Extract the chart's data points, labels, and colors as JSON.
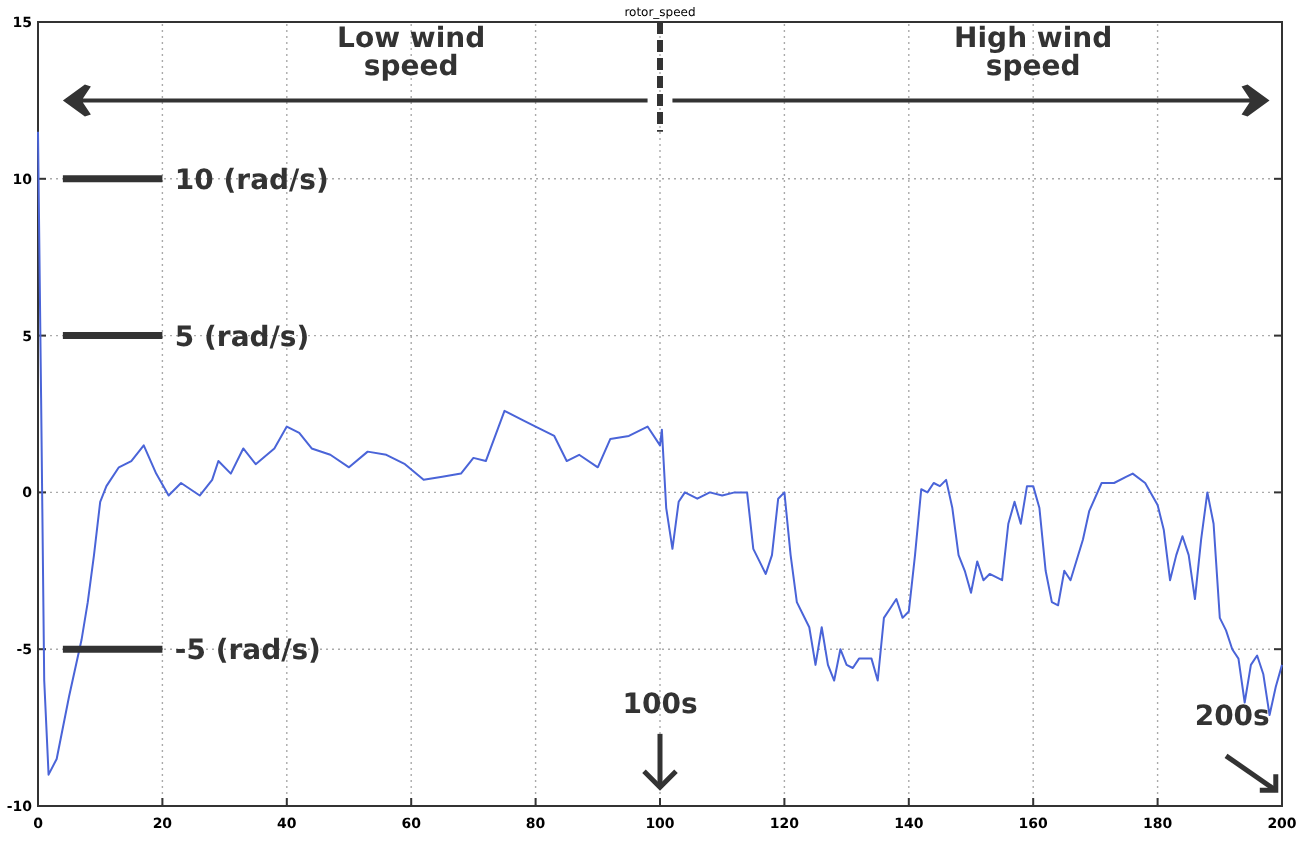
{
  "chart_data": {
    "type": "line",
    "title": "rotor_speed",
    "x": [
      0,
      0.5,
      1,
      1.7,
      3,
      5,
      7,
      8,
      9,
      10,
      11,
      13,
      15,
      17,
      19,
      21,
      23,
      26,
      28,
      29,
      31,
      33,
      35,
      38,
      40,
      42,
      44,
      47,
      50,
      53,
      56,
      59,
      62,
      65,
      68,
      70,
      72,
      75,
      78,
      80,
      83,
      85,
      87,
      90,
      92,
      95,
      98,
      100,
      100.3,
      101,
      102,
      103,
      104,
      106,
      108,
      110,
      112,
      114,
      115,
      116,
      117,
      118,
      119,
      120,
      121,
      122,
      123,
      124,
      125,
      126,
      127,
      128,
      129,
      130,
      131,
      132,
      134,
      135,
      136,
      137,
      138,
      139,
      140,
      141,
      142,
      143,
      144,
      145,
      146,
      147,
      148,
      149,
      150,
      151,
      152,
      153,
      155,
      156,
      157,
      158,
      159,
      160,
      161,
      162,
      163,
      164,
      165,
      166,
      168,
      169,
      171,
      173,
      175,
      176,
      178,
      180,
      181,
      182,
      183,
      184,
      185,
      186,
      187,
      188,
      189,
      190,
      191,
      192,
      193,
      194,
      195,
      196,
      197,
      198,
      199,
      200
    ],
    "series": [
      {
        "color": "#4a64d8",
        "values": [
          11.5,
          3,
          -6,
          -9,
          -8.5,
          -6.5,
          -4.7,
          -3.5,
          -2,
          -0.3,
          0.2,
          0.8,
          1.0,
          1.5,
          0.6,
          -0.1,
          0.3,
          -0.1,
          0.4,
          1.0,
          0.6,
          1.4,
          0.9,
          1.4,
          2.1,
          1.9,
          1.4,
          1.2,
          0.8,
          1.3,
          1.2,
          0.9,
          0.4,
          0.5,
          0.6,
          1.1,
          1.0,
          2.6,
          2.3,
          2.1,
          1.8,
          1.0,
          1.2,
          0.8,
          1.7,
          1.8,
          2.1,
          1.5,
          2.0,
          -0.5,
          -1.8,
          -0.3,
          0,
          -0.2,
          0,
          -0.1,
          0,
          0,
          -1.8,
          -2.2,
          -2.6,
          -2.0,
          -0.2,
          0,
          -2,
          -3.5,
          -3.9,
          -4.3,
          -5.5,
          -4.3,
          -5.5,
          -6.0,
          -5.0,
          -5.5,
          -5.6,
          -5.3,
          -5.3,
          -6,
          -4.0,
          -3.7,
          -3.4,
          -4,
          -3.8,
          -2,
          0.1,
          0,
          0.3,
          0.2,
          0.4,
          -0.5,
          -2.0,
          -2.5,
          -3.2,
          -2.2,
          -2.8,
          -2.6,
          -2.8,
          -1.0,
          -0.3,
          -1.0,
          0.2,
          0.2,
          -0.5,
          -2.5,
          -3.5,
          -3.6,
          -2.5,
          -2.8,
          -1.5,
          -0.6,
          0.3,
          0.3,
          0.5,
          0.6,
          0.3,
          -0.4,
          -1.2,
          -2.8,
          -2.0,
          -1.4,
          -2.0,
          -3.4,
          -1.5,
          0.0,
          -1.0,
          -4.0,
          -4.4,
          -5,
          -5.3,
          -6.7,
          -5.5,
          -5.2,
          -5.8,
          -7.1,
          -6.2,
          -5.5
        ]
      }
    ],
    "xlim": [
      0,
      200
    ],
    "ylim": [
      -10,
      15
    ],
    "xticks": [
      0,
      20,
      40,
      60,
      80,
      100,
      120,
      140,
      160,
      180,
      200
    ],
    "yticks": [
      -10,
      -5,
      0,
      5,
      10,
      15
    ],
    "grid": true,
    "marker": "none",
    "line_style": "solid",
    "ref_lines": [
      {
        "axis": "y",
        "value": 10,
        "label": "10 (rad/s)"
      },
      {
        "axis": "y",
        "value": 5,
        "label": "5 (rad/s)"
      },
      {
        "axis": "y",
        "value": -5,
        "label": "-5 (rad/s)"
      }
    ],
    "annotations": [
      "Low wind speed",
      "High wind speed",
      "100s",
      "200s"
    ]
  }
}
